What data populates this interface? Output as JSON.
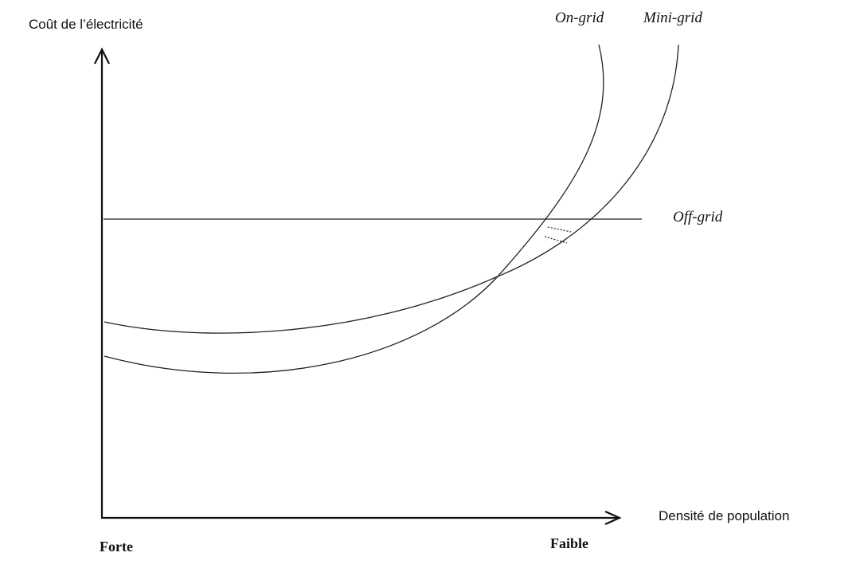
{
  "diagram": {
    "y_axis_label": "Coût de l’électricité",
    "x_axis_label": "Densité de population",
    "x_start_label": "Forte",
    "x_end_label": "Faible",
    "curves": {
      "on_grid": "On-grid",
      "mini_grid": "Mini-grid",
      "off_grid": "Off-grid"
    }
  }
}
